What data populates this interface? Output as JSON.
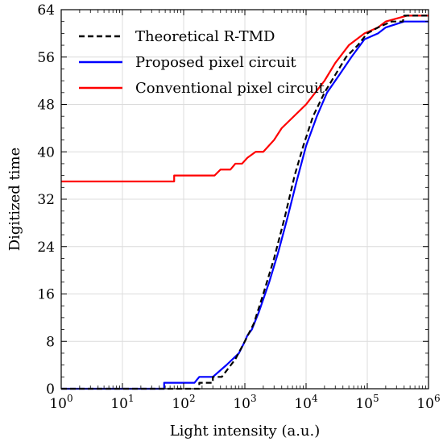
{
  "chart_data": {
    "type": "line",
    "title": "",
    "xlabel": "Light intensity (a.u.)",
    "ylabel": "Digitized time",
    "xscale": "log",
    "xlim": [
      1,
      1000000
    ],
    "ylim": [
      0,
      64
    ],
    "grid": true,
    "legend_position": "top-left",
    "x_tick_labels": [
      "10^0",
      "10^1",
      "10^2",
      "10^3",
      "10^4",
      "10^5",
      "10^6"
    ],
    "x_tick_label_parts": [
      {
        "base": "10",
        "exp": "0"
      },
      {
        "base": "10",
        "exp": "1"
      },
      {
        "base": "10",
        "exp": "2"
      },
      {
        "base": "10",
        "exp": "3"
      },
      {
        "base": "10",
        "exp": "4"
      },
      {
        "base": "10",
        "exp": "5"
      },
      {
        "base": "10",
        "exp": "6"
      }
    ],
    "y_ticks": [
      0,
      8,
      16,
      24,
      32,
      40,
      48,
      56,
      64
    ],
    "series": [
      {
        "name": "Theoretical R-TMD",
        "color": "#000000",
        "dash": "dashed",
        "points": [
          [
            1,
            0
          ],
          [
            180,
            0
          ],
          [
            180,
            1
          ],
          [
            300,
            1
          ],
          [
            300,
            2
          ],
          [
            420,
            2
          ],
          [
            700,
            5
          ],
          [
            1000,
            8
          ],
          [
            1400,
            11
          ],
          [
            2000,
            16
          ],
          [
            3000,
            22
          ],
          [
            4500,
            29
          ],
          [
            6500,
            36
          ],
          [
            9000,
            41
          ],
          [
            13000,
            46
          ],
          [
            20000,
            50
          ],
          [
            30000,
            53
          ],
          [
            45000,
            56
          ],
          [
            70000,
            58
          ],
          [
            100000,
            60
          ],
          [
            150000,
            61
          ],
          [
            250000,
            62
          ],
          [
            380000,
            62
          ],
          [
            400000,
            63
          ],
          [
            1000000,
            63
          ]
        ]
      },
      {
        "name": "Proposed pixel circuit",
        "color": "#0000ff",
        "dash": "solid",
        "points": [
          [
            1,
            0
          ],
          [
            48,
            0
          ],
          [
            48,
            1
          ],
          [
            150,
            1
          ],
          [
            180,
            2
          ],
          [
            300,
            2
          ],
          [
            500,
            4
          ],
          [
            800,
            6
          ],
          [
            1000,
            8
          ],
          [
            1100,
            9
          ],
          [
            1300,
            10
          ],
          [
            1700,
            13
          ],
          [
            2500,
            18
          ],
          [
            3500,
            23
          ],
          [
            5000,
            29
          ],
          [
            7000,
            35
          ],
          [
            10000,
            41
          ],
          [
            15000,
            46
          ],
          [
            22000,
            50
          ],
          [
            35000,
            53
          ],
          [
            55000,
            56
          ],
          [
            90000,
            59
          ],
          [
            150000,
            60
          ],
          [
            200000,
            61
          ],
          [
            400000,
            62
          ],
          [
            1000000,
            62
          ]
        ]
      },
      {
        "name": "Conventional pixel circuit",
        "color": "#ff0000",
        "dash": "solid",
        "points": [
          [
            1,
            35
          ],
          [
            70,
            35
          ],
          [
            70,
            36
          ],
          [
            320,
            36
          ],
          [
            400,
            37
          ],
          [
            580,
            37
          ],
          [
            700,
            38
          ],
          [
            900,
            38
          ],
          [
            1100,
            39
          ],
          [
            1500,
            40
          ],
          [
            2000,
            40
          ],
          [
            3000,
            42
          ],
          [
            4000,
            44
          ],
          [
            10000,
            48
          ],
          [
            20000,
            52
          ],
          [
            30000,
            55
          ],
          [
            50000,
            58
          ],
          [
            90000,
            60
          ],
          [
            150000,
            61
          ],
          [
            200000,
            62
          ],
          [
            450000,
            63
          ],
          [
            1000000,
            63
          ]
        ]
      }
    ]
  }
}
